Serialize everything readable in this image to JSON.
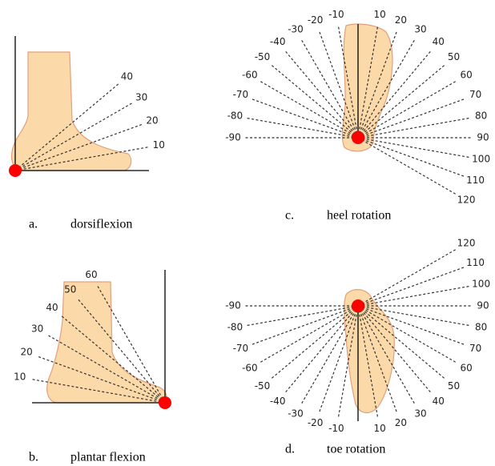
{
  "panels": [
    {
      "letter": "a.",
      "caption": "dorsiflexion",
      "angles": [
        10,
        20,
        30,
        40
      ]
    },
    {
      "letter": "b.",
      "caption": "plantar flexion",
      "angles": [
        10,
        20,
        30,
        40,
        50,
        60
      ]
    },
    {
      "letter": "c.",
      "caption": "heel rotation",
      "angles": [
        -90,
        -80,
        -70,
        -60,
        -50,
        -40,
        -30,
        -20,
        -10,
        10,
        20,
        30,
        40,
        50,
        60,
        70,
        80,
        90,
        100,
        110,
        120
      ]
    },
    {
      "letter": "d.",
      "caption": "toe rotation",
      "angles": [
        -90,
        -80,
        -70,
        -60,
        -50,
        -40,
        -30,
        -20,
        -10,
        10,
        20,
        30,
        40,
        50,
        60,
        70,
        80,
        90,
        100,
        110,
        120
      ]
    }
  ]
}
